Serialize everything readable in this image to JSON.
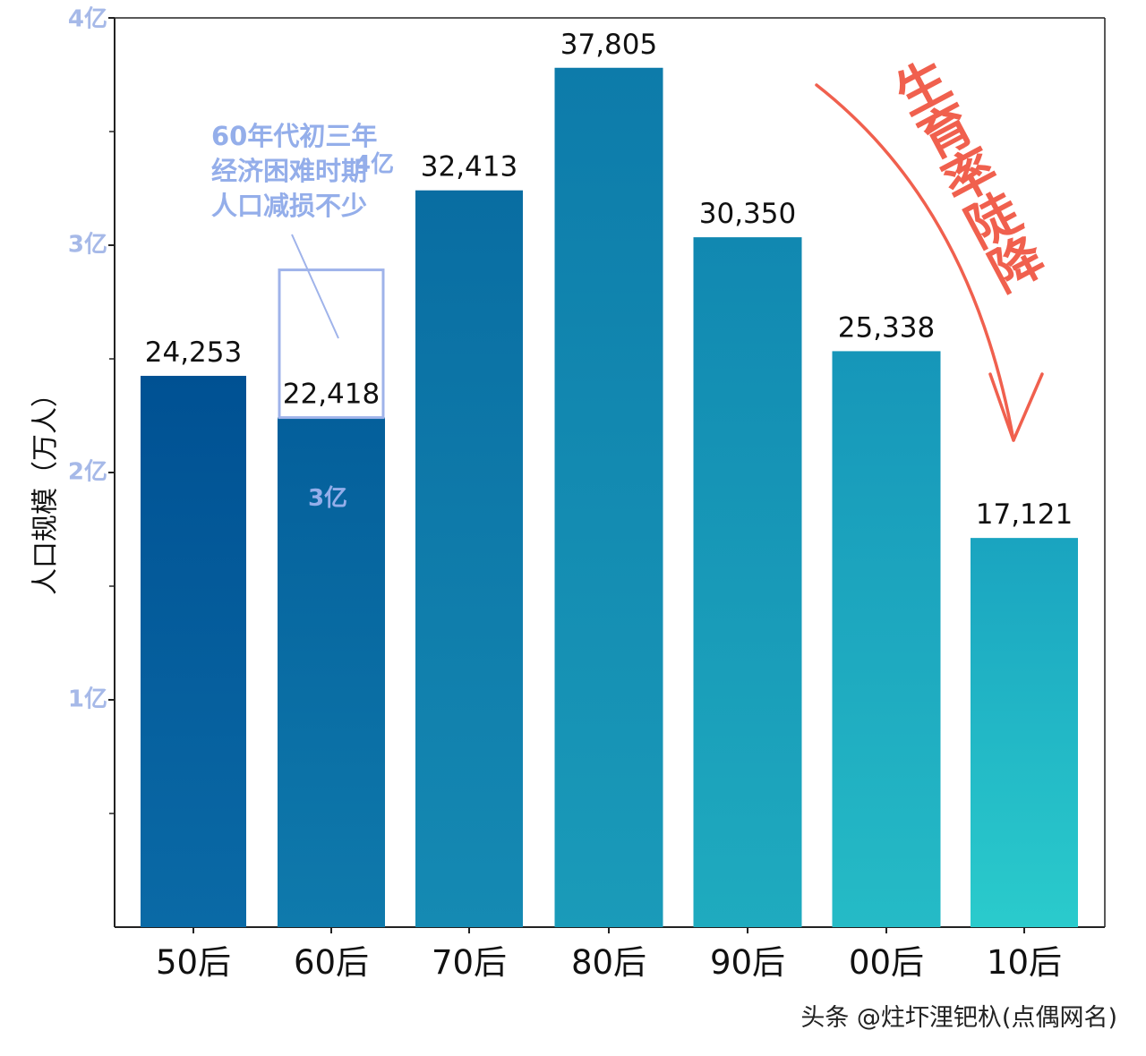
{
  "chart_data": {
    "type": "bar",
    "categories": [
      "50后",
      "60后",
      "70后",
      "80后",
      "90后",
      "00后",
      "10后"
    ],
    "values": [
      24253,
      22418,
      32413,
      37805,
      30350,
      25338,
      17121
    ],
    "value_labels": [
      "24,253",
      "22,418",
      "32,413",
      "37,805",
      "30,350",
      "25,338",
      "17,121"
    ],
    "ylabel": "人口规模（万人）",
    "ylim": [
      0,
      40000
    ],
    "y_ticks": [
      {
        "value": 10000,
        "label": "1亿"
      },
      {
        "value": 20000,
        "label": "2亿"
      },
      {
        "value": 30000,
        "label": "3亿"
      },
      {
        "value": 40000,
        "label": "4亿"
      }
    ],
    "y_minor_ticks": [
      5000,
      15000,
      25000,
      35000
    ],
    "grid": false,
    "colors": {
      "bar_top_dark": "#005193",
      "bar_top_light": "#1aa4c0",
      "bar_bottom_dark": "#0a6aa6",
      "bar_bottom_light": "#2acbcc",
      "tick_label": "#a6b9e8",
      "annotation": "#94aeea",
      "trend": "#f0604e"
    },
    "annotations": [
      {
        "lines": [
          "60年代初三年",
          "经济困难时期",
          "人口减损不少"
        ],
        "target": "60后"
      },
      {
        "text": "生育率陡降",
        "type": "trend-arrow"
      }
    ],
    "stray_labels": [
      {
        "text": "4亿",
        "near": "annotation"
      },
      {
        "text": "3亿",
        "near": "60后"
      }
    ]
  },
  "watermark": "头条 @炷圷浬钯杁(点偶网名)"
}
